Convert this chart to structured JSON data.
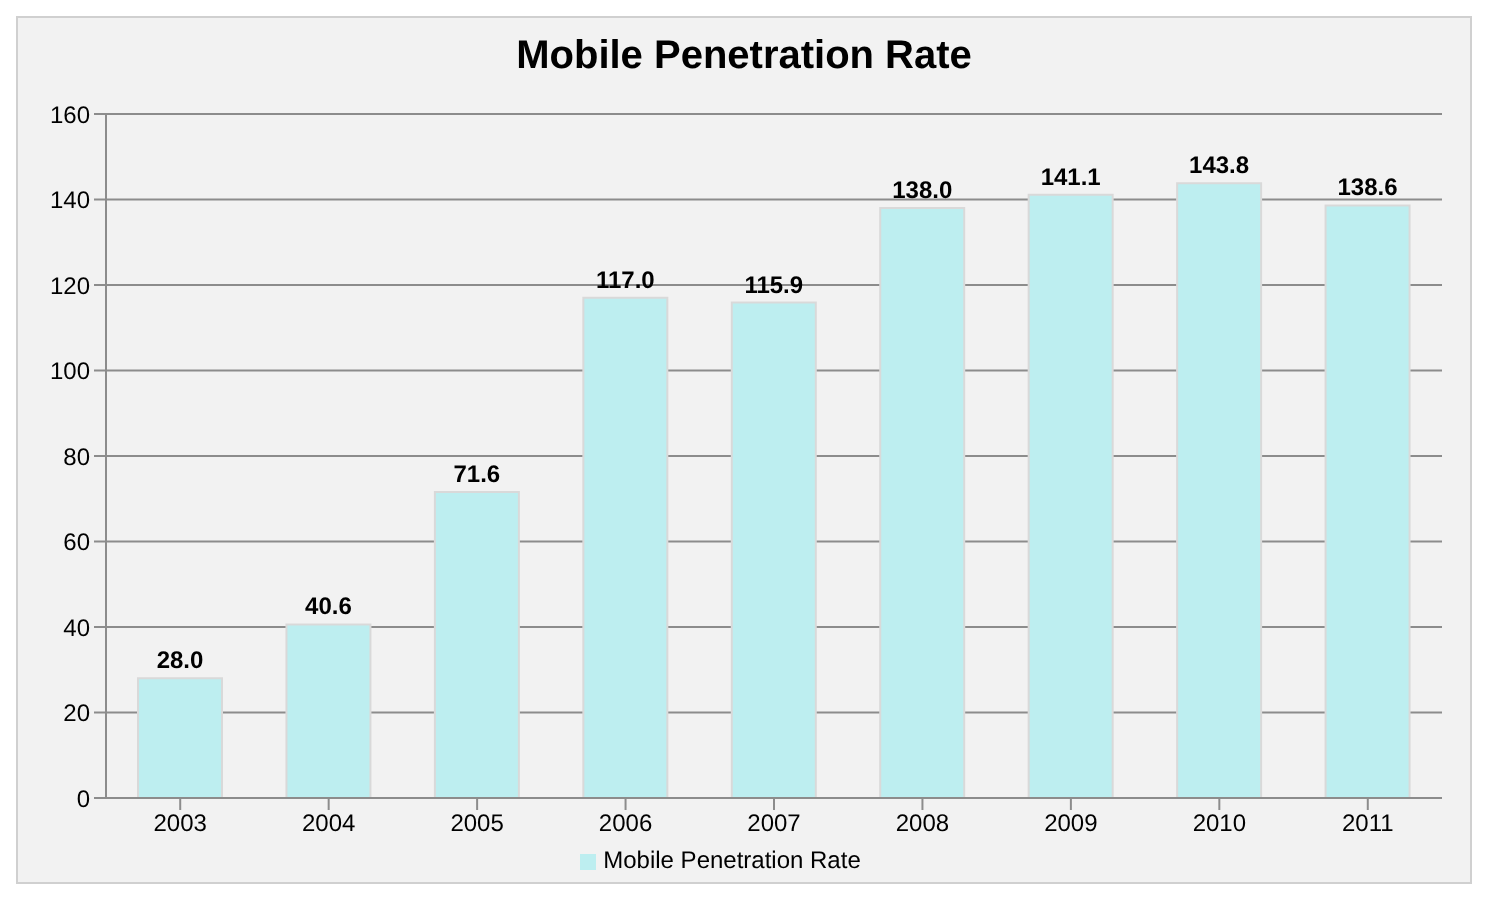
{
  "chart_data": {
    "type": "bar",
    "title": "Mobile Penetration Rate",
    "categories": [
      "2003",
      "2004",
      "2005",
      "2006",
      "2007",
      "2008",
      "2009",
      "2010",
      "2011"
    ],
    "series": [
      {
        "name": "Mobile Penetration Rate",
        "color": "#bdeef0",
        "values": [
          28.0,
          40.6,
          71.6,
          117.0,
          115.9,
          138.0,
          141.1,
          143.8,
          138.6
        ],
        "value_labels": [
          "28.0",
          "40.6",
          "71.6",
          "117.0",
          "115.9",
          "138.0",
          "141.1",
          "143.8",
          "138.6"
        ]
      }
    ],
    "ylim": [
      0,
      160
    ],
    "yticks": [
      0,
      20,
      40,
      60,
      80,
      100,
      120,
      140,
      160
    ],
    "grid": "y",
    "legend": "bottom"
  }
}
